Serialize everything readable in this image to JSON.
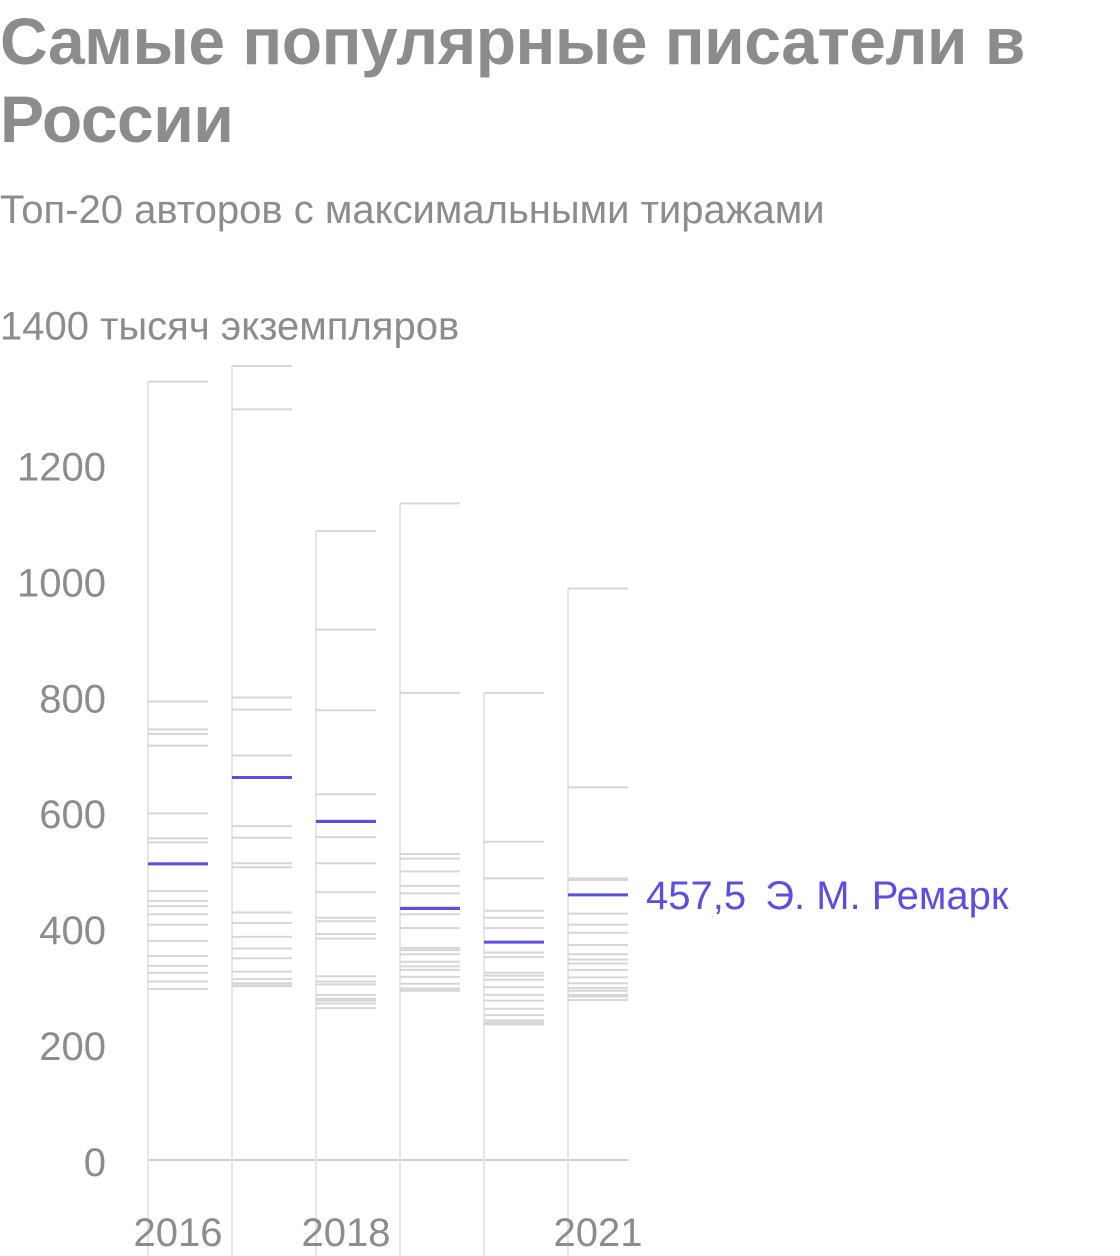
{
  "header": {
    "title": "Самые популярные писатели в России",
    "subtitle": "Топ-20 авторов с максимальными тиражами"
  },
  "colors": {
    "highlight": "#5b4ee0",
    "other": "#d6d6d6",
    "grid": "#e6e6e6",
    "text": "#8c8c8c"
  },
  "chart_data": {
    "type": "scatter",
    "ylabel_unit": "тысяч экземпляров",
    "ylim": [
      0,
      1400
    ],
    "y_ticks": [
      0,
      200,
      400,
      600,
      800,
      1000,
      1200,
      1400
    ],
    "x_tick_labels": [
      {
        "year": 2016,
        "label": "2016"
      },
      {
        "year": 2018,
        "label": "2018"
      },
      {
        "year": 2021,
        "label": "2021"
      }
    ],
    "columns": [
      {
        "year": 2016,
        "values": [
          1343,
          791,
          743,
          735,
          715,
          598,
          555,
          548,
          512,
          464,
          447,
          438,
          424,
          406,
          378,
          352,
          335,
          323,
          308,
          295
        ]
      },
      {
        "year": 2017,
        "values": [
          1370,
          1295,
          798,
          777,
          698,
          659,
          576,
          556,
          512,
          505,
          427,
          409,
          385,
          365,
          348,
          325,
          312,
          305,
          301,
          300
        ]
      },
      {
        "year": 2018,
        "values": [
          1085,
          915,
          776,
          631,
          586,
          557,
          512,
          462,
          418,
          412,
          390,
          382,
          317,
          308,
          303,
          285,
          278,
          275,
          270,
          262
        ]
      },
      {
        "year": 2019,
        "values": [
          1133,
          806,
          528,
          520,
          498,
          473,
          460,
          436,
          424,
          400,
          366,
          362,
          355,
          342,
          334,
          328,
          316,
          304,
          296,
          292
        ]
      },
      {
        "year": 2020,
        "values": [
          806,
          549,
          486,
          430,
          418,
          400,
          376,
          358,
          350,
          323,
          318,
          311,
          298,
          285,
          275,
          261,
          250,
          241,
          237,
          234
        ]
      },
      {
        "year": 2021,
        "values": [
          986,
          643,
          486,
          483,
          457.5,
          425,
          406,
          392,
          371,
          355,
          346,
          339,
          328,
          315,
          305,
          297,
          292,
          285,
          282,
          276
        ]
      }
    ],
    "highlight": {
      "name": "Э. М. Ремарк",
      "value_label": "457,5",
      "values": [
        511,
        660,
        584,
        434,
        376,
        457.5
      ]
    }
  }
}
